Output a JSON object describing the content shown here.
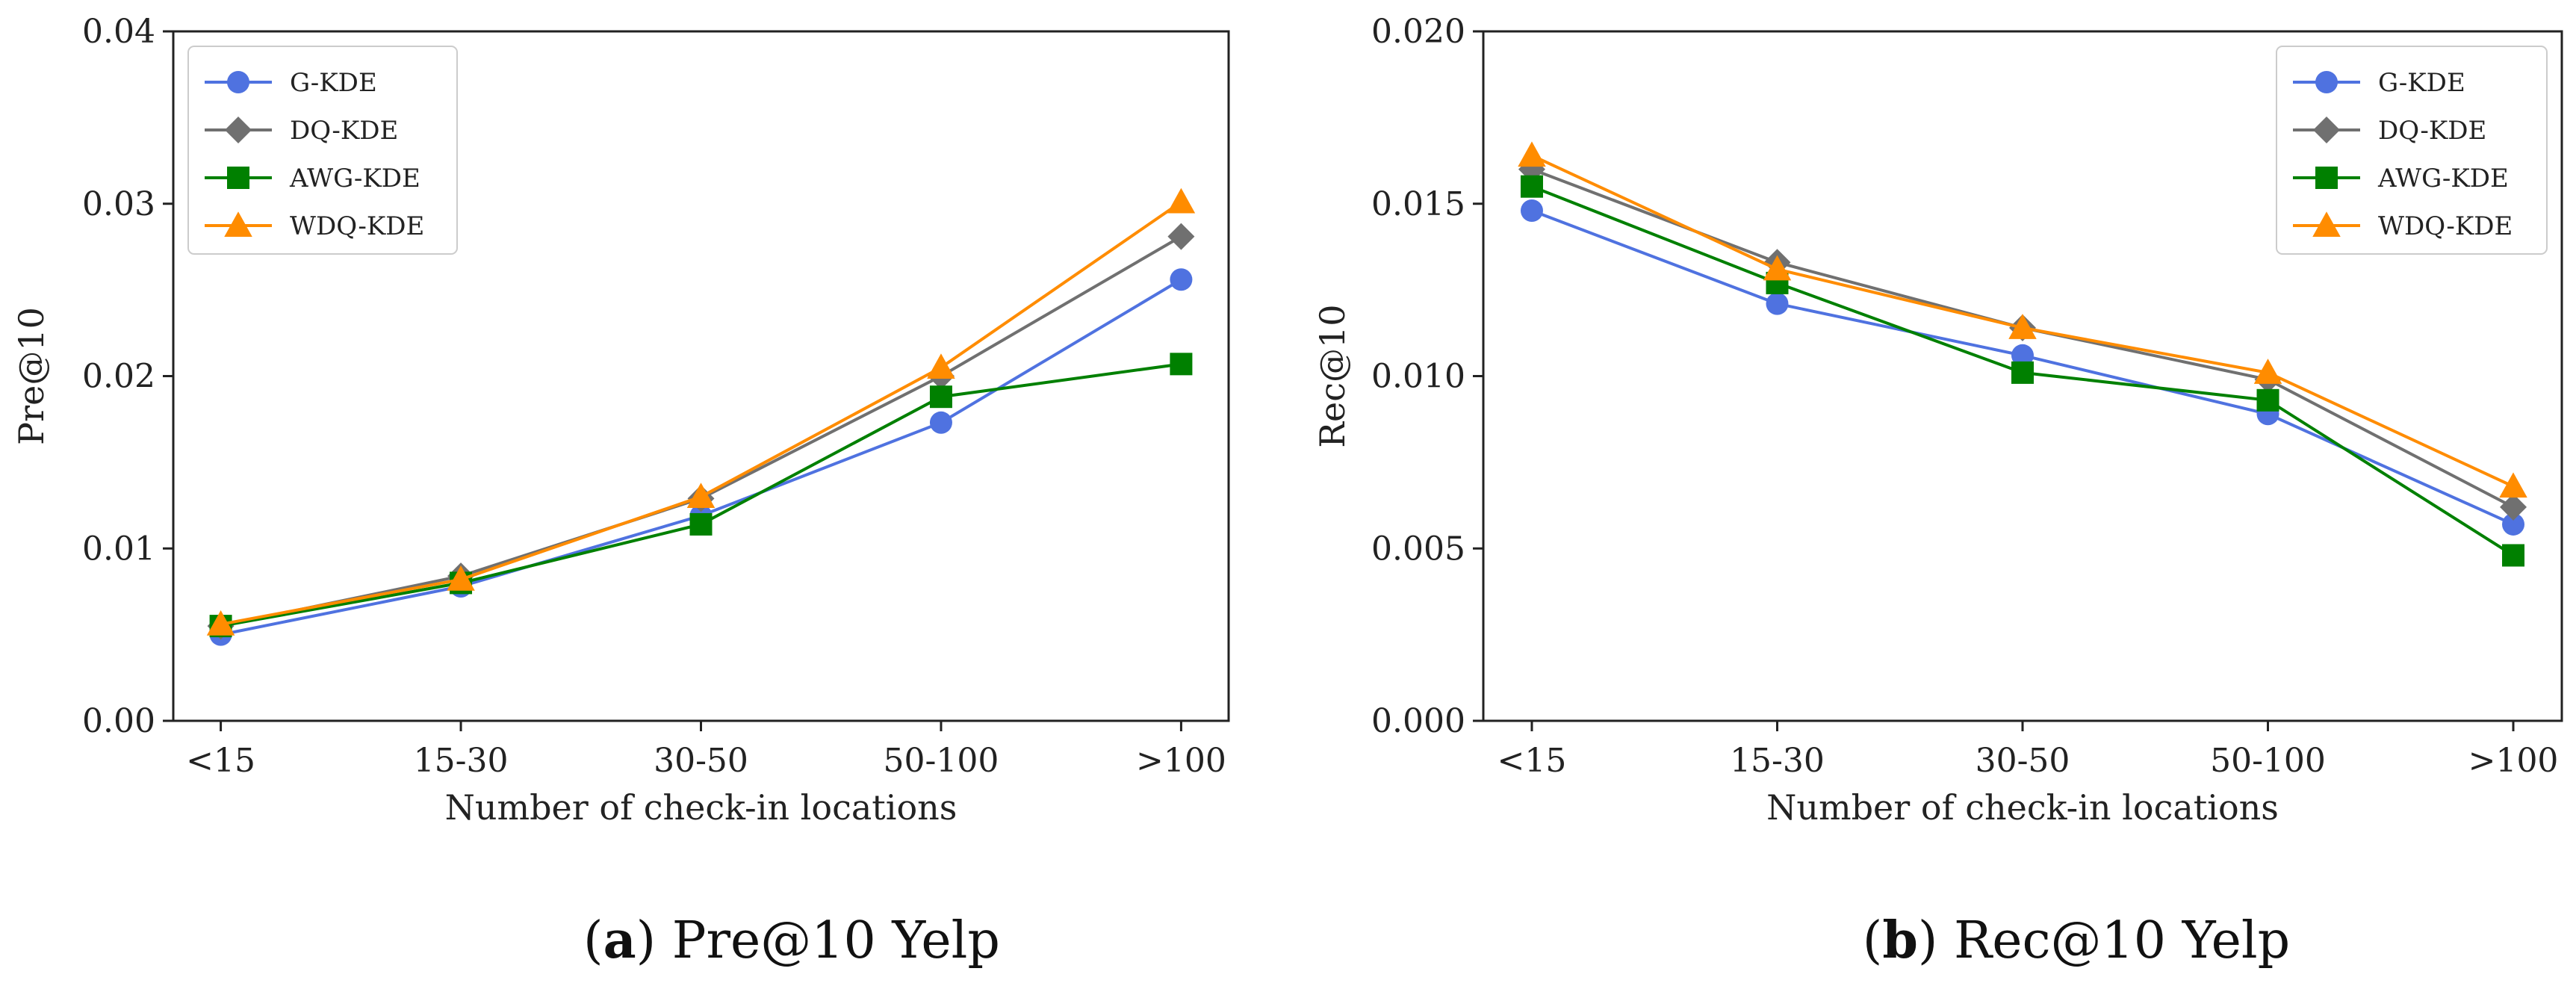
{
  "chart_data": [
    {
      "type": "line",
      "categories": [
        "<15",
        "15-30",
        "30-50",
        "50-100",
        ">100"
      ],
      "xlabel": "Number of check-in locations",
      "ylabel": "Pre@10",
      "ylim": [
        0,
        0.04
      ],
      "yticks": [
        "0.00",
        "0.01",
        "0.02",
        "0.03",
        "0.04"
      ],
      "legend_position": "top-left",
      "caption_letter": "a",
      "caption_text": " Pre@10 Yelp",
      "series": [
        {
          "name": "G-KDE",
          "color": "#4f72e0",
          "marker": "circle",
          "values": [
            0.005,
            0.0078,
            0.0119,
            0.0173,
            0.0256
          ]
        },
        {
          "name": "DQ-KDE",
          "color": "#707070",
          "marker": "diamond",
          "values": [
            0.0055,
            0.0084,
            0.0129,
            0.02,
            0.0281
          ]
        },
        {
          "name": "AWG-KDE",
          "color": "#008000",
          "marker": "square",
          "values": [
            0.0055,
            0.008,
            0.0114,
            0.0188,
            0.0207
          ]
        },
        {
          "name": "WDQ-KDE",
          "color": "#ff8c00",
          "marker": "triangle",
          "values": [
            0.0056,
            0.0082,
            0.013,
            0.0205,
            0.0301
          ]
        }
      ]
    },
    {
      "type": "line",
      "categories": [
        "<15",
        "15-30",
        "30-50",
        "50-100",
        ">100"
      ],
      "xlabel": "Number of check-in locations",
      "ylabel": "Rec@10",
      "ylim": [
        0,
        0.02
      ],
      "yticks": [
        "0.000",
        "0.005",
        "0.010",
        "0.015",
        "0.020"
      ],
      "legend_position": "top-right",
      "caption_letter": "b",
      "caption_text": " Rec@10 Yelp",
      "series": [
        {
          "name": "G-KDE",
          "color": "#4f72e0",
          "marker": "circle",
          "values": [
            0.0148,
            0.0121,
            0.0106,
            0.0089,
            0.0057
          ]
        },
        {
          "name": "DQ-KDE",
          "color": "#707070",
          "marker": "diamond",
          "values": [
            0.016,
            0.0133,
            0.0114,
            0.0099,
            0.0062
          ]
        },
        {
          "name": "AWG-KDE",
          "color": "#008000",
          "marker": "square",
          "values": [
            0.0155,
            0.0127,
            0.0101,
            0.0093,
            0.0048
          ]
        },
        {
          "name": "WDQ-KDE",
          "color": "#ff8c00",
          "marker": "triangle",
          "values": [
            0.0164,
            0.0131,
            0.0114,
            0.0101,
            0.0068
          ]
        }
      ]
    }
  ]
}
